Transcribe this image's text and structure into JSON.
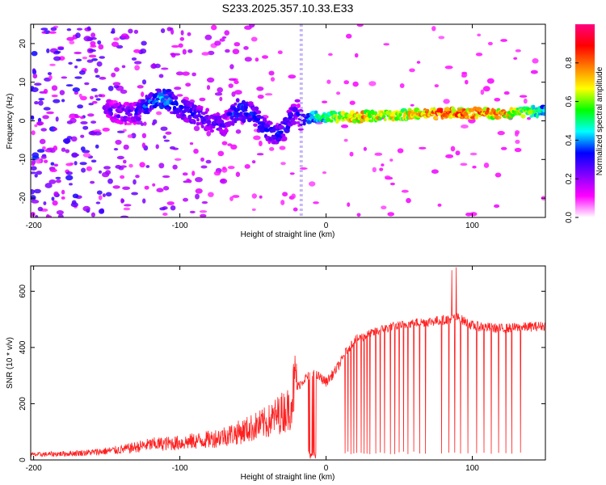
{
  "title": "S233.2025.357.10.33.E33",
  "chart_data": [
    {
      "type": "heatmap",
      "xlabel": "Height of straight line (km)",
      "ylabel": "Frequency (Hz)",
      "xlim": [
        -202,
        150
      ],
      "ylim": [
        -25,
        25
      ],
      "x_ticks": [
        -200,
        -100,
        0,
        100
      ],
      "y_ticks": [
        -20,
        -10,
        0,
        10,
        20
      ],
      "vertical_line_x": -17,
      "colorbar": {
        "label": "Normalized spectral amplitude",
        "range": [
          0,
          1
        ],
        "ticks": [
          0.0,
          0.2,
          0.4,
          0.6,
          0.8
        ],
        "colors": [
          "#ffffff",
          "#ff00ff",
          "#7f00ff",
          "#0000ff",
          "#00ffff",
          "#00ff00",
          "#ffff00",
          "#ff8000",
          "#ff0000",
          "#ff0080"
        ]
      },
      "ridge": {
        "x": [
          -150,
          -140,
          -130,
          -120,
          -110,
          -100,
          -90,
          -80,
          -70,
          -60,
          -50,
          -40,
          -30,
          -25,
          -20,
          -17,
          -10,
          0,
          20,
          50,
          80,
          100,
          120,
          150
        ],
        "freq": [
          3,
          2,
          2,
          5,
          6,
          3,
          2,
          0,
          -1,
          3,
          2,
          -3,
          -3,
          0,
          3,
          0,
          1,
          1,
          1,
          1.5,
          2,
          2,
          2,
          2.5
        ],
        "amplitude": [
          0.25,
          0.3,
          0.3,
          0.4,
          0.45,
          0.35,
          0.35,
          0.3,
          0.3,
          0.4,
          0.35,
          0.35,
          0.35,
          0.35,
          0.3,
          0.3,
          0.45,
          0.55,
          0.8,
          0.7,
          0.85,
          0.85,
          0.8,
          0.5
        ]
      }
    },
    {
      "type": "line",
      "xlabel": "Height of straight line (km)",
      "ylabel": "SNR (10 * v/v)",
      "xlim": [
        -202,
        150
      ],
      "ylim": [
        0,
        690
      ],
      "x_ticks": [
        -200,
        -100,
        0,
        100
      ],
      "y_ticks": [
        0,
        200,
        400,
        600
      ],
      "color": "#ff2020",
      "trend": {
        "x": [
          -202,
          -180,
          -160,
          -140,
          -120,
          -100,
          -80,
          -60,
          -50,
          -40,
          -30,
          -25,
          -20,
          -15,
          -10,
          -5,
          0,
          5,
          10,
          15,
          20,
          25,
          30,
          40,
          50,
          60,
          80,
          90,
          100,
          120,
          150
        ],
        "y": [
          15,
          18,
          22,
          30,
          45,
          50,
          60,
          80,
          95,
          110,
          140,
          150,
          250,
          280,
          300,
          290,
          270,
          300,
          340,
          390,
          420,
          430,
          440,
          460,
          470,
          480,
          490,
          500,
          470,
          460,
          470
        ]
      },
      "dropouts_x": [
        -12,
        -10,
        -9,
        -8,
        13,
        15,
        17,
        19,
        21,
        24,
        26,
        28,
        30,
        34,
        37,
        40,
        44,
        47,
        50,
        53,
        56,
        60,
        64,
        68,
        79,
        84,
        88,
        92,
        97,
        103,
        108,
        113,
        118,
        123,
        127,
        133
      ],
      "spikes": [
        {
          "x": 86,
          "y": 675
        },
        {
          "x": 89,
          "y": 685
        }
      ]
    }
  ]
}
